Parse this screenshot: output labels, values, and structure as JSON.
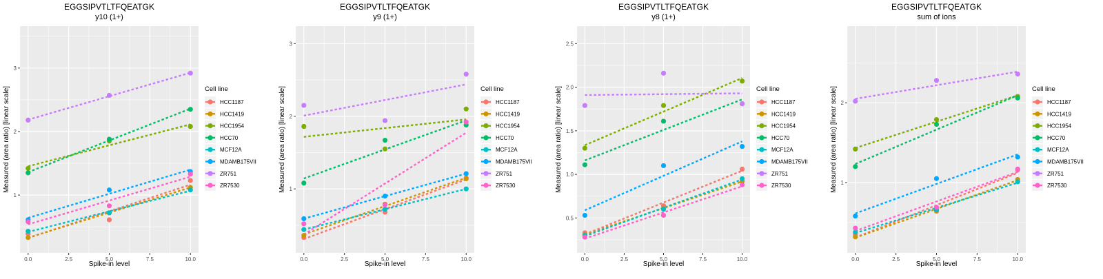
{
  "legend": {
    "title": "Cell line",
    "entries": [
      {
        "name": "HCC1187",
        "color": "#F8766D"
      },
      {
        "name": "HCC1419",
        "color": "#CD9600"
      },
      {
        "name": "HCC1954",
        "color": "#7CAE00"
      },
      {
        "name": "HCC70",
        "color": "#00BE67"
      },
      {
        "name": "MCF12A",
        "color": "#00BFC4"
      },
      {
        "name": "MDAMB175VII",
        "color": "#00A9FF"
      },
      {
        "name": "ZR751",
        "color": "#C77CFF"
      },
      {
        "name": "ZR7530",
        "color": "#FF61CC"
      }
    ]
  },
  "chart_data": [
    {
      "type": "scatter",
      "title": "EGGSIPVTLTFQEATGK",
      "subtitle": "y10 (1+)",
      "xlabel": "Spike-in level",
      "ylabel": "Measured (area ratio) [linear scale]",
      "x": [
        0,
        5,
        10
      ],
      "xlim": [
        -0.5,
        10.5
      ],
      "xticks": [
        "0.0",
        "2.5",
        "5.0",
        "7.5",
        "10.0"
      ],
      "xtick_values": [
        0,
        2.5,
        5,
        7.5,
        10
      ],
      "ylim": [
        0.09,
        3.66
      ],
      "yticks": [
        "1",
        "2",
        "3"
      ],
      "ytick_values": [
        1,
        2,
        3
      ],
      "grid": true,
      "trend": "linear fit (dotted)",
      "legend_position": "right",
      "series": [
        {
          "name": "HCC1187",
          "values": [
            0.39,
            0.61,
            1.23
          ]
        },
        {
          "name": "HCC1419",
          "values": [
            0.33,
            0.72,
            1.12
          ]
        },
        {
          "name": "HCC1954",
          "values": [
            1.42,
            1.85,
            2.08
          ]
        },
        {
          "name": "HCC70",
          "values": [
            1.35,
            1.88,
            2.35
          ]
        },
        {
          "name": "MCF12A",
          "values": [
            0.43,
            0.72,
            1.08
          ]
        },
        {
          "name": "MDAMB175VII",
          "values": [
            0.61,
            1.08,
            1.37
          ]
        },
        {
          "name": "ZR751",
          "values": [
            2.18,
            2.57,
            2.92
          ]
        },
        {
          "name": "ZR7530",
          "values": [
            0.58,
            0.83,
            1.33
          ]
        }
      ]
    },
    {
      "type": "scatter",
      "title": "EGGSIPVTLTFQEATGK",
      "subtitle": "y9 (1+)",
      "xlabel": "Spike-in level",
      "ylabel": "Measured (area ratio) [linear scale]",
      "x": [
        0,
        5,
        10
      ],
      "xlim": [
        -0.5,
        10.5
      ],
      "xticks": [
        "0.0",
        "2.5",
        "5.0",
        "7.5",
        "10.0"
      ],
      "xtick_values": [
        0,
        2.5,
        5,
        7.5,
        10
      ],
      "ylim": [
        0.12,
        3.24
      ],
      "yticks": [
        "1",
        "2",
        "3"
      ],
      "ytick_values": [
        1,
        2,
        3
      ],
      "grid": true,
      "trend": "linear fit (dotted)",
      "legend_position": "right",
      "series": [
        {
          "name": "HCC1187",
          "values": [
            0.33,
            0.68,
            1.15
          ]
        },
        {
          "name": "HCC1419",
          "values": [
            0.36,
            0.79,
            1.14
          ]
        },
        {
          "name": "HCC1954",
          "values": [
            1.86,
            1.55,
            2.1
          ]
        },
        {
          "name": "HCC70",
          "values": [
            1.08,
            1.67,
            1.88
          ]
        },
        {
          "name": "MCF12A",
          "values": [
            0.44,
            0.72,
            1.0
          ]
        },
        {
          "name": "MDAMB175VII",
          "values": [
            0.59,
            0.9,
            1.21
          ]
        },
        {
          "name": "ZR751",
          "values": [
            2.15,
            1.94,
            2.58
          ]
        },
        {
          "name": "ZR7530",
          "values": [
            0.52,
            0.78,
            1.92
          ]
        }
      ]
    },
    {
      "type": "scatter",
      "title": "EGGSIPVTLTFQEATGK",
      "subtitle": "y8 (1+)",
      "xlabel": "Spike-in level",
      "ylabel": "Measured (area ratio) [linear scale]",
      "x": [
        0,
        5,
        10
      ],
      "xlim": [
        -0.5,
        10.5
      ],
      "xticks": [
        "0.0",
        "2.5",
        "5.0",
        "7.5",
        "10.0"
      ],
      "xtick_values": [
        0,
        2.5,
        5,
        7.5,
        10
      ],
      "ylim": [
        0.1,
        2.7
      ],
      "yticks": [
        "0.5",
        "1.0",
        "1.5",
        "2.0",
        "2.5"
      ],
      "ytick_values": [
        0.5,
        1.0,
        1.5,
        2.0,
        2.5
      ],
      "grid": true,
      "trend": "linear fit (dotted)",
      "legend_position": "right",
      "series": [
        {
          "name": "HCC1187",
          "values": [
            0.33,
            0.64,
            1.06
          ]
        },
        {
          "name": "HCC1419",
          "values": [
            0.31,
            0.61,
            0.92
          ]
        },
        {
          "name": "HCC1954",
          "values": [
            1.3,
            1.79,
            2.07
          ]
        },
        {
          "name": "HCC70",
          "values": [
            1.11,
            1.61,
            1.81
          ]
        },
        {
          "name": "MCF12A",
          "values": [
            0.3,
            0.6,
            0.95
          ]
        },
        {
          "name": "MDAMB175VII",
          "values": [
            0.53,
            1.1,
            1.32
          ]
        },
        {
          "name": "ZR751",
          "values": [
            1.79,
            2.16,
            1.81
          ]
        },
        {
          "name": "ZR7530",
          "values": [
            0.28,
            0.53,
            0.88
          ]
        }
      ]
    },
    {
      "type": "scatter",
      "title": "EGGSIPVTLTFQEATGK",
      "subtitle": "sum of ions",
      "xlabel": "Spike-in level",
      "ylabel": "Measured (area ratio) [linear scale]",
      "x": [
        0,
        5,
        10
      ],
      "xlim": [
        -0.5,
        10.5
      ],
      "xticks": [
        "0.0",
        "2.5",
        "5.0",
        "7.5",
        "10.0"
      ],
      "xtick_values": [
        0,
        2.5,
        5,
        7.5,
        10
      ],
      "ylim": [
        0.12,
        2.96
      ],
      "yticks": [
        "1",
        "2"
      ],
      "ytick_values": [
        1,
        2
      ],
      "grid": true,
      "trend": "linear fit (dotted)",
      "legend_position": "right",
      "series": [
        {
          "name": "HCC1187",
          "values": [
            0.35,
            0.64,
            1.16
          ]
        },
        {
          "name": "HCC1419",
          "values": [
            0.32,
            0.65,
            1.04
          ]
        },
        {
          "name": "HCC1954",
          "values": [
            1.42,
            1.79,
            2.08
          ]
        },
        {
          "name": "HCC70",
          "values": [
            1.2,
            1.73,
            2.06
          ]
        },
        {
          "name": "MCF12A",
          "values": [
            0.38,
            0.66,
            1.01
          ]
        },
        {
          "name": "MDAMB175VII",
          "values": [
            0.58,
            1.05,
            1.32
          ]
        },
        {
          "name": "ZR751",
          "values": [
            2.02,
            2.28,
            2.36
          ]
        },
        {
          "name": "ZR7530",
          "values": [
            0.43,
            0.69,
            1.17
          ]
        }
      ]
    }
  ]
}
